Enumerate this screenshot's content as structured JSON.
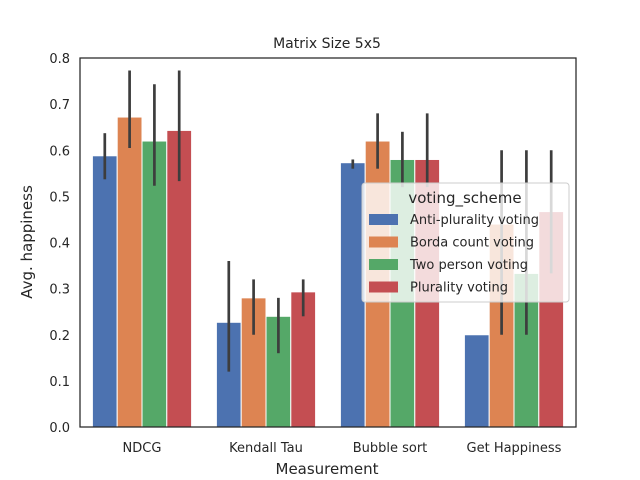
{
  "chart_data": {
    "type": "bar",
    "title": "Matrix Size 5x5",
    "xlabel": "Measurement",
    "ylabel": "Avg. happiness",
    "ylim": [
      0,
      0.8
    ],
    "yticks": [
      "0.0",
      "0.1",
      "0.2",
      "0.3",
      "0.4",
      "0.5",
      "0.6",
      "0.7",
      "0.8"
    ],
    "categories": [
      "NDCG",
      "Kendall Tau",
      "Bubble sort",
      "Get Happiness"
    ],
    "legend": {
      "title": "voting_scheme",
      "position": "center-right"
    },
    "grid": false,
    "series": [
      {
        "name": "Anti-plurality voting",
        "color": "#4c72b0",
        "values": [
          0.588,
          0.227,
          0.573,
          0.2
        ],
        "ci": [
          [
            0.537,
            0.637
          ],
          [
            0.12,
            0.36
          ],
          [
            0.56,
            0.58
          ],
          [
            0.2,
            0.2
          ]
        ]
      },
      {
        "name": "Borda count voting",
        "color": "#dd8452",
        "values": [
          0.672,
          0.28,
          0.62,
          0.44
        ],
        "ci": [
          [
            0.605,
            0.773
          ],
          [
            0.2,
            0.32
          ],
          [
            0.56,
            0.68
          ],
          [
            0.2,
            0.6
          ]
        ]
      },
      {
        "name": "Two person voting",
        "color": "#55a868",
        "values": [
          0.62,
          0.24,
          0.58,
          0.333
        ],
        "ci": [
          [
            0.523,
            0.743
          ],
          [
            0.16,
            0.28
          ],
          [
            0.52,
            0.64
          ],
          [
            0.2,
            0.6
          ]
        ]
      },
      {
        "name": "Plurality voting",
        "color": "#c44e52",
        "values": [
          0.643,
          0.293,
          0.58,
          0.467
        ],
        "ci": [
          [
            0.533,
            0.773
          ],
          [
            0.24,
            0.32
          ],
          [
            0.52,
            0.68
          ],
          [
            0.333,
            0.6
          ]
        ]
      }
    ]
  }
}
